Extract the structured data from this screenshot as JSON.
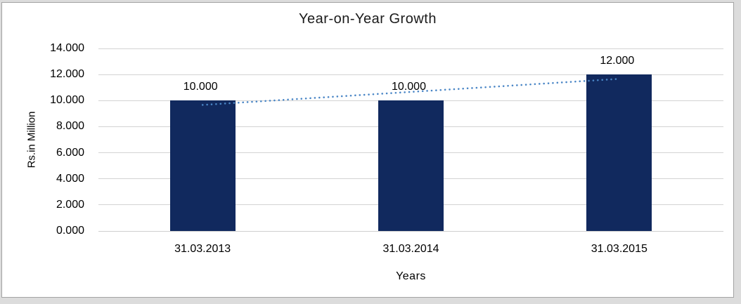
{
  "chart_data": {
    "type": "bar",
    "title": "Year-on-Year Growth",
    "xlabel": "Years",
    "ylabel": "Rs.in Million",
    "categories": [
      "31.03.2013",
      "31.03.2014",
      "31.03.2015"
    ],
    "values": [
      10,
      10,
      12
    ],
    "data_labels": [
      "10.000",
      "10.000",
      "12.000"
    ],
    "ylim": [
      0,
      14
    ],
    "ytick_step": 2,
    "ytick_labels": [
      "0.000",
      "2.000",
      "4.000",
      "6.000",
      "8.000",
      "10.000",
      "12.000",
      "14.000"
    ],
    "grid": true,
    "legend": "none",
    "bar_color": "#11295E",
    "gridline_color": "#D3D3D3",
    "axis_line_color": "#CFCFCF",
    "text_color": "#000000",
    "trendline": {
      "type": "linear",
      "style": "dotted",
      "color": "#4A86C6",
      "endpoint_values": [
        9.667,
        11.667
      ]
    }
  }
}
